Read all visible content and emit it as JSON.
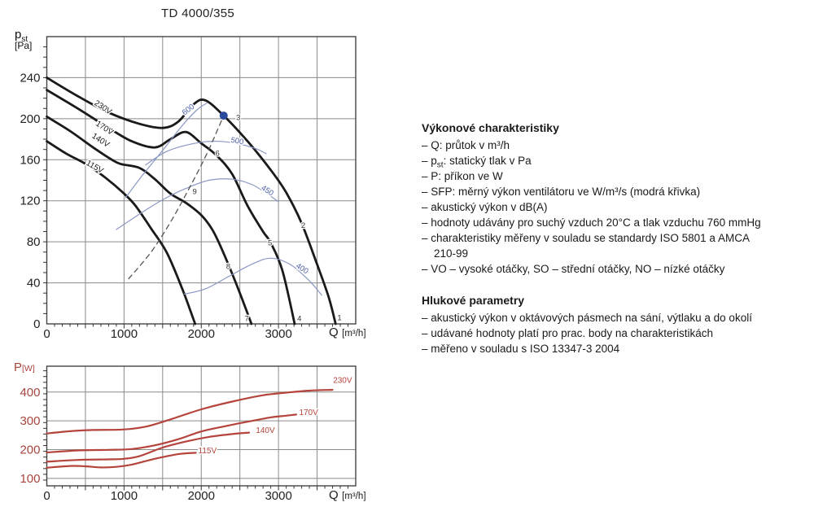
{
  "page_title": "TD 4000/355",
  "chart_data": [
    {
      "type": "line",
      "name": "pressure-flow-chart",
      "title": "TD 4000/355",
      "xlabel": "Q",
      "xlabel_unit": "[m³/h]",
      "ylabel_main": "p",
      "ylabel_sub": "st",
      "ylabel_unit": "[Pa]",
      "xlim": [
        0,
        4000
      ],
      "ylim": [
        0,
        280
      ],
      "x_ticks": [
        0,
        1000,
        2000,
        3000
      ],
      "y_ticks": [
        0,
        40,
        80,
        120,
        160,
        200,
        240
      ],
      "grid": true,
      "series": [
        {
          "name": "230V",
          "color": "#1a1a1a",
          "width": 2.8,
          "points": [
            [
              0,
              240
            ],
            [
              400,
              222
            ],
            [
              800,
              206
            ],
            [
              1200,
              195
            ],
            [
              1500,
              191
            ],
            [
              1700,
              197
            ],
            [
              1900,
              214
            ],
            [
              2050,
              218
            ],
            [
              2290,
              203
            ],
            [
              2600,
              178
            ],
            [
              2900,
              150
            ],
            [
              3100,
              128
            ],
            [
              3300,
              98
            ],
            [
              3500,
              58
            ],
            [
              3650,
              26
            ],
            [
              3740,
              0
            ]
          ],
          "label": {
            "text": "230V",
            "x": 710,
            "y": 209,
            "rot": 33,
            "size": 10,
            "color": "#1a1a1a"
          }
        },
        {
          "name": "170V",
          "color": "#1a1a1a",
          "width": 2.8,
          "points": [
            [
              0,
              228
            ],
            [
              400,
              210
            ],
            [
              800,
              191
            ],
            [
              1100,
              178
            ],
            [
              1400,
              172
            ],
            [
              1600,
              180
            ],
            [
              1800,
              187
            ],
            [
              2000,
              176
            ],
            [
              2200,
              164
            ],
            [
              2400,
              146
            ],
            [
              2600,
              115
            ],
            [
              2800,
              90
            ],
            [
              2900,
              79
            ],
            [
              3050,
              52
            ],
            [
              3210,
              0
            ]
          ],
          "label": {
            "text": "170V",
            "x": 730,
            "y": 189,
            "rot": 33,
            "size": 10,
            "color": "#1a1a1a"
          }
        },
        {
          "name": "140V",
          "color": "#1a1a1a",
          "width": 2.8,
          "points": [
            [
              0,
              202
            ],
            [
              300,
              188
            ],
            [
              600,
              172
            ],
            [
              800,
              162
            ],
            [
              950,
              156
            ],
            [
              1200,
              152
            ],
            [
              1400,
              141
            ],
            [
              1600,
              127
            ],
            [
              1800,
              118
            ],
            [
              2000,
              106
            ],
            [
              2150,
              91
            ],
            [
              2300,
              67
            ],
            [
              2500,
              30
            ],
            [
              2650,
              0
            ]
          ],
          "label": {
            "text": "140V",
            "x": 680,
            "y": 177,
            "rot": 33,
            "size": 10,
            "color": "#1a1a1a"
          }
        },
        {
          "name": "115V",
          "color": "#1a1a1a",
          "width": 2.8,
          "points": [
            [
              0,
              178
            ],
            [
              250,
              166
            ],
            [
              500,
              156
            ],
            [
              750,
              143
            ],
            [
              1000,
              127
            ],
            [
              1150,
              115
            ],
            [
              1350,
              93
            ],
            [
              1550,
              70
            ],
            [
              1750,
              35
            ],
            [
              1920,
              0
            ]
          ],
          "label": {
            "text": "115V",
            "x": 605,
            "y": 151,
            "rot": 30,
            "size": 10,
            "color": "#1a1a1a"
          }
        },
        {
          "name": "SFP-600",
          "color": "#8a97c4",
          "width": 1.2,
          "points": [
            [
              1020,
              123
            ],
            [
              1250,
              146
            ],
            [
              1500,
              169
            ],
            [
              1750,
              193
            ],
            [
              1950,
              209
            ],
            [
              2070,
              215
            ]
          ],
          "label": {
            "text": "600",
            "x": 1850,
            "y": 207,
            "rot": -38,
            "size": 9.5,
            "color": "#4a5fa5"
          }
        },
        {
          "name": "SFP-500",
          "color": "#8a97c4",
          "width": 1.2,
          "points": [
            [
              1280,
              155
            ],
            [
              1550,
              168
            ],
            [
              1850,
              175
            ],
            [
              2150,
              178
            ],
            [
              2450,
              176
            ],
            [
              2700,
              171
            ],
            [
              2840,
              166
            ]
          ],
          "label": {
            "text": "500",
            "x": 2460,
            "y": 176,
            "rot": 10,
            "size": 9.5,
            "color": "#4a5fa5"
          }
        },
        {
          "name": "SFP-450",
          "color": "#8a97c4",
          "width": 1.2,
          "points": [
            [
              900,
              92
            ],
            [
              1200,
              107
            ],
            [
              1500,
              121
            ],
            [
              1800,
              132
            ],
            [
              2100,
              140
            ],
            [
              2400,
              141
            ],
            [
              2650,
              136
            ],
            [
              2850,
              127
            ],
            [
              3000,
              119
            ]
          ],
          "label": {
            "text": "450",
            "x": 2840,
            "y": 128,
            "rot": 33,
            "size": 9.5,
            "color": "#4a5fa5"
          }
        },
        {
          "name": "SFP-400",
          "color": "#8a97c4",
          "width": 1.2,
          "points": [
            [
              1780,
              29
            ],
            [
              2050,
              34
            ],
            [
              2350,
              46
            ],
            [
              2650,
              58
            ],
            [
              2900,
              64
            ],
            [
              3150,
              58
            ],
            [
              3400,
              42
            ],
            [
              3560,
              28
            ]
          ],
          "label": {
            "text": "400",
            "x": 3290,
            "y": 52,
            "rot": 33,
            "size": 9.5,
            "color": "#4a5fa5"
          }
        },
        {
          "name": "system-curve",
          "color": "#555555",
          "width": 1.3,
          "dash": "6,5",
          "points": [
            [
              1060,
              44
            ],
            [
              1350,
              70
            ],
            [
              1600,
              99
            ],
            [
              1850,
              133
            ],
            [
              2080,
              167
            ],
            [
              2290,
              203
            ]
          ]
        }
      ],
      "annotations": [
        {
          "text": "1",
          "x": 3790,
          "y": 6
        },
        {
          "text": "2",
          "x": 3320,
          "y": 96
        },
        {
          "text": "3",
          "x": 2480,
          "y": 201
        },
        {
          "text": "4",
          "x": 3270,
          "y": 5
        },
        {
          "text": "5",
          "x": 2890,
          "y": 79
        },
        {
          "text": "6",
          "x": 2210,
          "y": 166
        },
        {
          "text": "7",
          "x": 2590,
          "y": 5
        },
        {
          "text": "8",
          "x": 2350,
          "y": 56
        },
        {
          "text": "9",
          "x": 1915,
          "y": 129
        }
      ],
      "marker": {
        "x": 2290,
        "y": 203,
        "r": 5,
        "color": "#2b4a9e"
      }
    },
    {
      "type": "line",
      "name": "power-flow-chart",
      "xlabel": "Q",
      "xlabel_unit": "[m³/h]",
      "ylabel_main": "P",
      "ylabel_unit": "[W]",
      "xlim": [
        0,
        4000
      ],
      "ylim": [
        74,
        490
      ],
      "x_ticks": [
        0,
        1000,
        2000,
        3000
      ],
      "y_ticks": [
        100,
        200,
        300,
        400
      ],
      "grid": true,
      "series": [
        {
          "name": "230V",
          "color": "#b5443c",
          "width": 2.2,
          "points": [
            [
              0,
              256
            ],
            [
              300,
              264
            ],
            [
              600,
              268
            ],
            [
              1000,
              270
            ],
            [
              1300,
              281
            ],
            [
              1600,
              305
            ],
            [
              2000,
              340
            ],
            [
              2400,
              367
            ],
            [
              2800,
              389
            ],
            [
              3100,
              398
            ],
            [
              3400,
              405
            ],
            [
              3700,
              408
            ]
          ],
          "label": {
            "text": "230V",
            "x": 3830,
            "y": 432,
            "rot": 0,
            "size": 10,
            "color": "#b5443c"
          }
        },
        {
          "name": "170V",
          "color": "#b5443c",
          "width": 2.2,
          "points": [
            [
              0,
              190
            ],
            [
              400,
              197
            ],
            [
              800,
              199
            ],
            [
              1100,
              202
            ],
            [
              1400,
              215
            ],
            [
              1700,
              236
            ],
            [
              2000,
              263
            ],
            [
              2300,
              281
            ],
            [
              2600,
              297
            ],
            [
              2900,
              312
            ],
            [
              3100,
              318
            ],
            [
              3230,
              322
            ]
          ],
          "label": {
            "text": "170V",
            "x": 3390,
            "y": 320,
            "rot": 0,
            "size": 10,
            "color": "#b5443c"
          }
        },
        {
          "name": "140V",
          "color": "#b5443c",
          "width": 2.2,
          "points": [
            [
              0,
              158
            ],
            [
              400,
              164
            ],
            [
              800,
              166
            ],
            [
              1000,
              168
            ],
            [
              1200,
              177
            ],
            [
              1500,
              207
            ],
            [
              1800,
              228
            ],
            [
              2100,
              244
            ],
            [
              2400,
              254
            ],
            [
              2620,
              259
            ]
          ],
          "label": {
            "text": "140V",
            "x": 2830,
            "y": 258,
            "rot": 0,
            "size": 10,
            "color": "#b5443c"
          }
        },
        {
          "name": "115V",
          "color": "#b5443c",
          "width": 2.2,
          "points": [
            [
              0,
              137
            ],
            [
              300,
              143
            ],
            [
              500,
              142
            ],
            [
              700,
              138
            ],
            [
              900,
              140
            ],
            [
              1100,
              148
            ],
            [
              1400,
              168
            ],
            [
              1700,
              184
            ],
            [
              1930,
              189
            ]
          ],
          "label": {
            "text": "115V",
            "x": 2080,
            "y": 187,
            "rot": 0,
            "size": 10,
            "color": "#b5443c"
          }
        }
      ],
      "annotations": [],
      "y_label_color": "#a8453e"
    }
  ],
  "notes": {
    "perf": {
      "heading": "Výkonové charakteristiky",
      "item_q": "– Q: průtok v m³/h",
      "pst_prefix": "– p",
      "pst_sub": "st",
      "pst_rest": ": statický tlak v Pa",
      "item_p": "– P: příkon ve W",
      "item_sfp": "– SFP: měrný výkon ventilátoru ve W/m³/s (modrá křivka)",
      "item_acoustic": "– akustický výkon v dB(A)",
      "item_conditions": "– hodnoty udávány pro suchý vzduch 20°C a tlak vzduchu 760 mmHg",
      "item_standards": "– charakteristiky měřeny v souladu se standardy ISO 5801 a AMCA",
      "item_standards_cont": "210-99",
      "item_speeds": "– VO – vysoké otáčky, SO – střední otáčky, NO – nízké otáčky"
    },
    "noise": {
      "heading": "Hlukové parametry",
      "item_octave": "– akustický výkon v oktávových pásmech na sání, výtlaku a do okolí",
      "item_points": "– udávané hodnoty platí pro prac. body na charakteristikách",
      "item_iso": "– měřeno v souladu s ISO 13347-3 2004"
    }
  }
}
